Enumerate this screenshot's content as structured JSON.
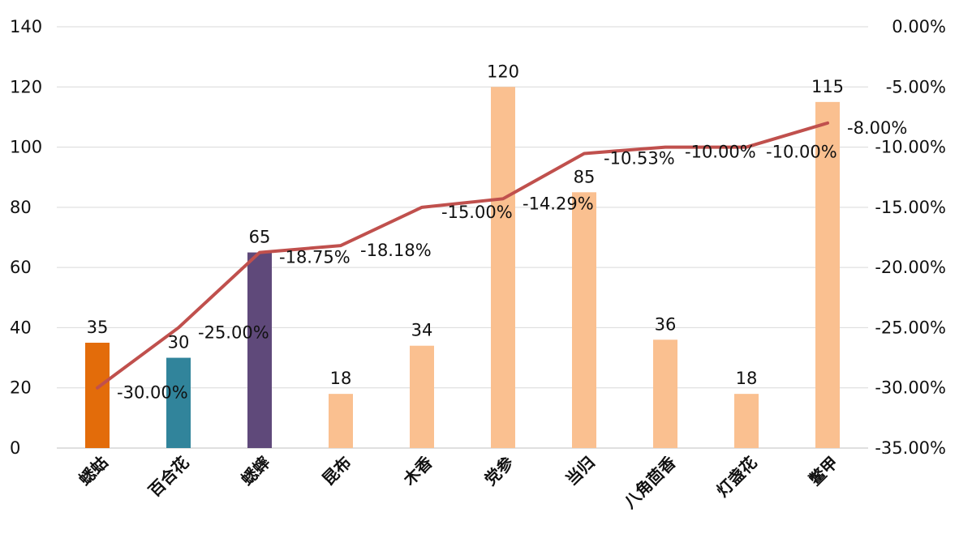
{
  "chart_data": {
    "type": "bar+line",
    "categories": [
      "蟋蛄",
      "百合花",
      "蟋蟀",
      "昆布",
      "木香",
      "党参",
      "当归",
      "八角茴香",
      "灯盏花",
      "鳖甲"
    ],
    "series": [
      {
        "type": "bar",
        "axis": "left",
        "values": [
          35,
          30,
          65,
          18,
          34,
          120,
          85,
          36,
          18,
          115
        ],
        "colors": [
          "#e36c0a",
          "#31849b",
          "#5f497a",
          "#fac090",
          "#fac090",
          "#fac090",
          "#fac090",
          "#fac090",
          "#fac090",
          "#fac090"
        ],
        "labels": [
          "35",
          "30",
          "65",
          "18",
          "34",
          "120",
          "85",
          "36",
          "18",
          "115"
        ]
      },
      {
        "type": "line",
        "axis": "right",
        "values": [
          -30.0,
          -25.0,
          -18.75,
          -18.18,
          -15.0,
          -14.29,
          -10.53,
          -10.0,
          -10.0,
          -8.0
        ],
        "labels": [
          "-30.00%",
          "-25.00%",
          "-18.75%",
          "-18.18%",
          "-15.00%",
          "-14.29%",
          "-10.53%",
          "-10.00%",
          "-10.00%",
          "-8.00%"
        ],
        "color": "#c0504d"
      }
    ],
    "y_left": {
      "range": [
        0,
        140
      ],
      "ticks": [
        "0",
        "20",
        "40",
        "60",
        "80",
        "100",
        "120",
        "140"
      ]
    },
    "y_right": {
      "range": [
        -35,
        0
      ],
      "ticks": [
        "-35.00%",
        "-30.00%",
        "-25.00%",
        "-20.00%",
        "-15.00%",
        "-10.00%",
        "-5.00%",
        "0.00%"
      ]
    },
    "grid": "horizontal",
    "title": "",
    "xlabel": "",
    "ylabel": ""
  }
}
